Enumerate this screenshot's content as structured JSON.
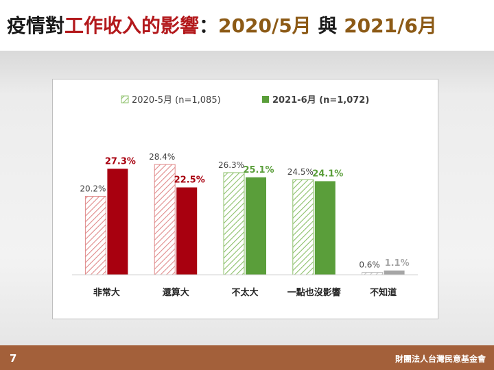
{
  "slide": {
    "title_part1": "疫情對",
    "title_highlight": "工作收入的影響",
    "title_colon": "：",
    "title_date1": "2020/5月",
    "title_conj": " 與 ",
    "title_date2": "2021/6月",
    "page_number": "7",
    "organization": "財團法人台灣民意基金會"
  },
  "colors": {
    "red_2020": "#e08a8a",
    "red_2021": "#a8000f",
    "green_2020": "#8cc06a",
    "green_2021": "#5a9e3a",
    "gray_2020": "#bfbfbf",
    "gray_2021": "#a6a6a6",
    "footer": "#a3603a"
  },
  "chart_data": {
    "type": "bar",
    "categories": [
      "非常大",
      "還算大",
      "不太大",
      "一點也沒影響",
      "不知道"
    ],
    "series": [
      {
        "name": "2020-5月 (n=1,085)",
        "values": [
          20.2,
          28.4,
          26.3,
          24.5,
          0.6
        ],
        "labels": [
          "20.2%",
          "28.4%",
          "26.3%",
          "24.5%",
          "0.6%"
        ],
        "pattern": "hatched"
      },
      {
        "name": "2021-6月 (n=1,072)",
        "values": [
          27.3,
          22.5,
          25.1,
          24.1,
          1.1
        ],
        "labels": [
          "27.3%",
          "22.5%",
          "25.1%",
          "24.1%",
          "1.1%"
        ],
        "pattern": "solid"
      }
    ],
    "bar_colors": [
      [
        "red_2020",
        "red_2021"
      ],
      [
        "red_2020",
        "red_2021"
      ],
      [
        "green_2020",
        "green_2021"
      ],
      [
        "green_2020",
        "green_2021"
      ],
      [
        "gray_2020",
        "gray_2021"
      ]
    ],
    "ylim": [
      0,
      30
    ],
    "legend_position": "top",
    "grid": false
  }
}
